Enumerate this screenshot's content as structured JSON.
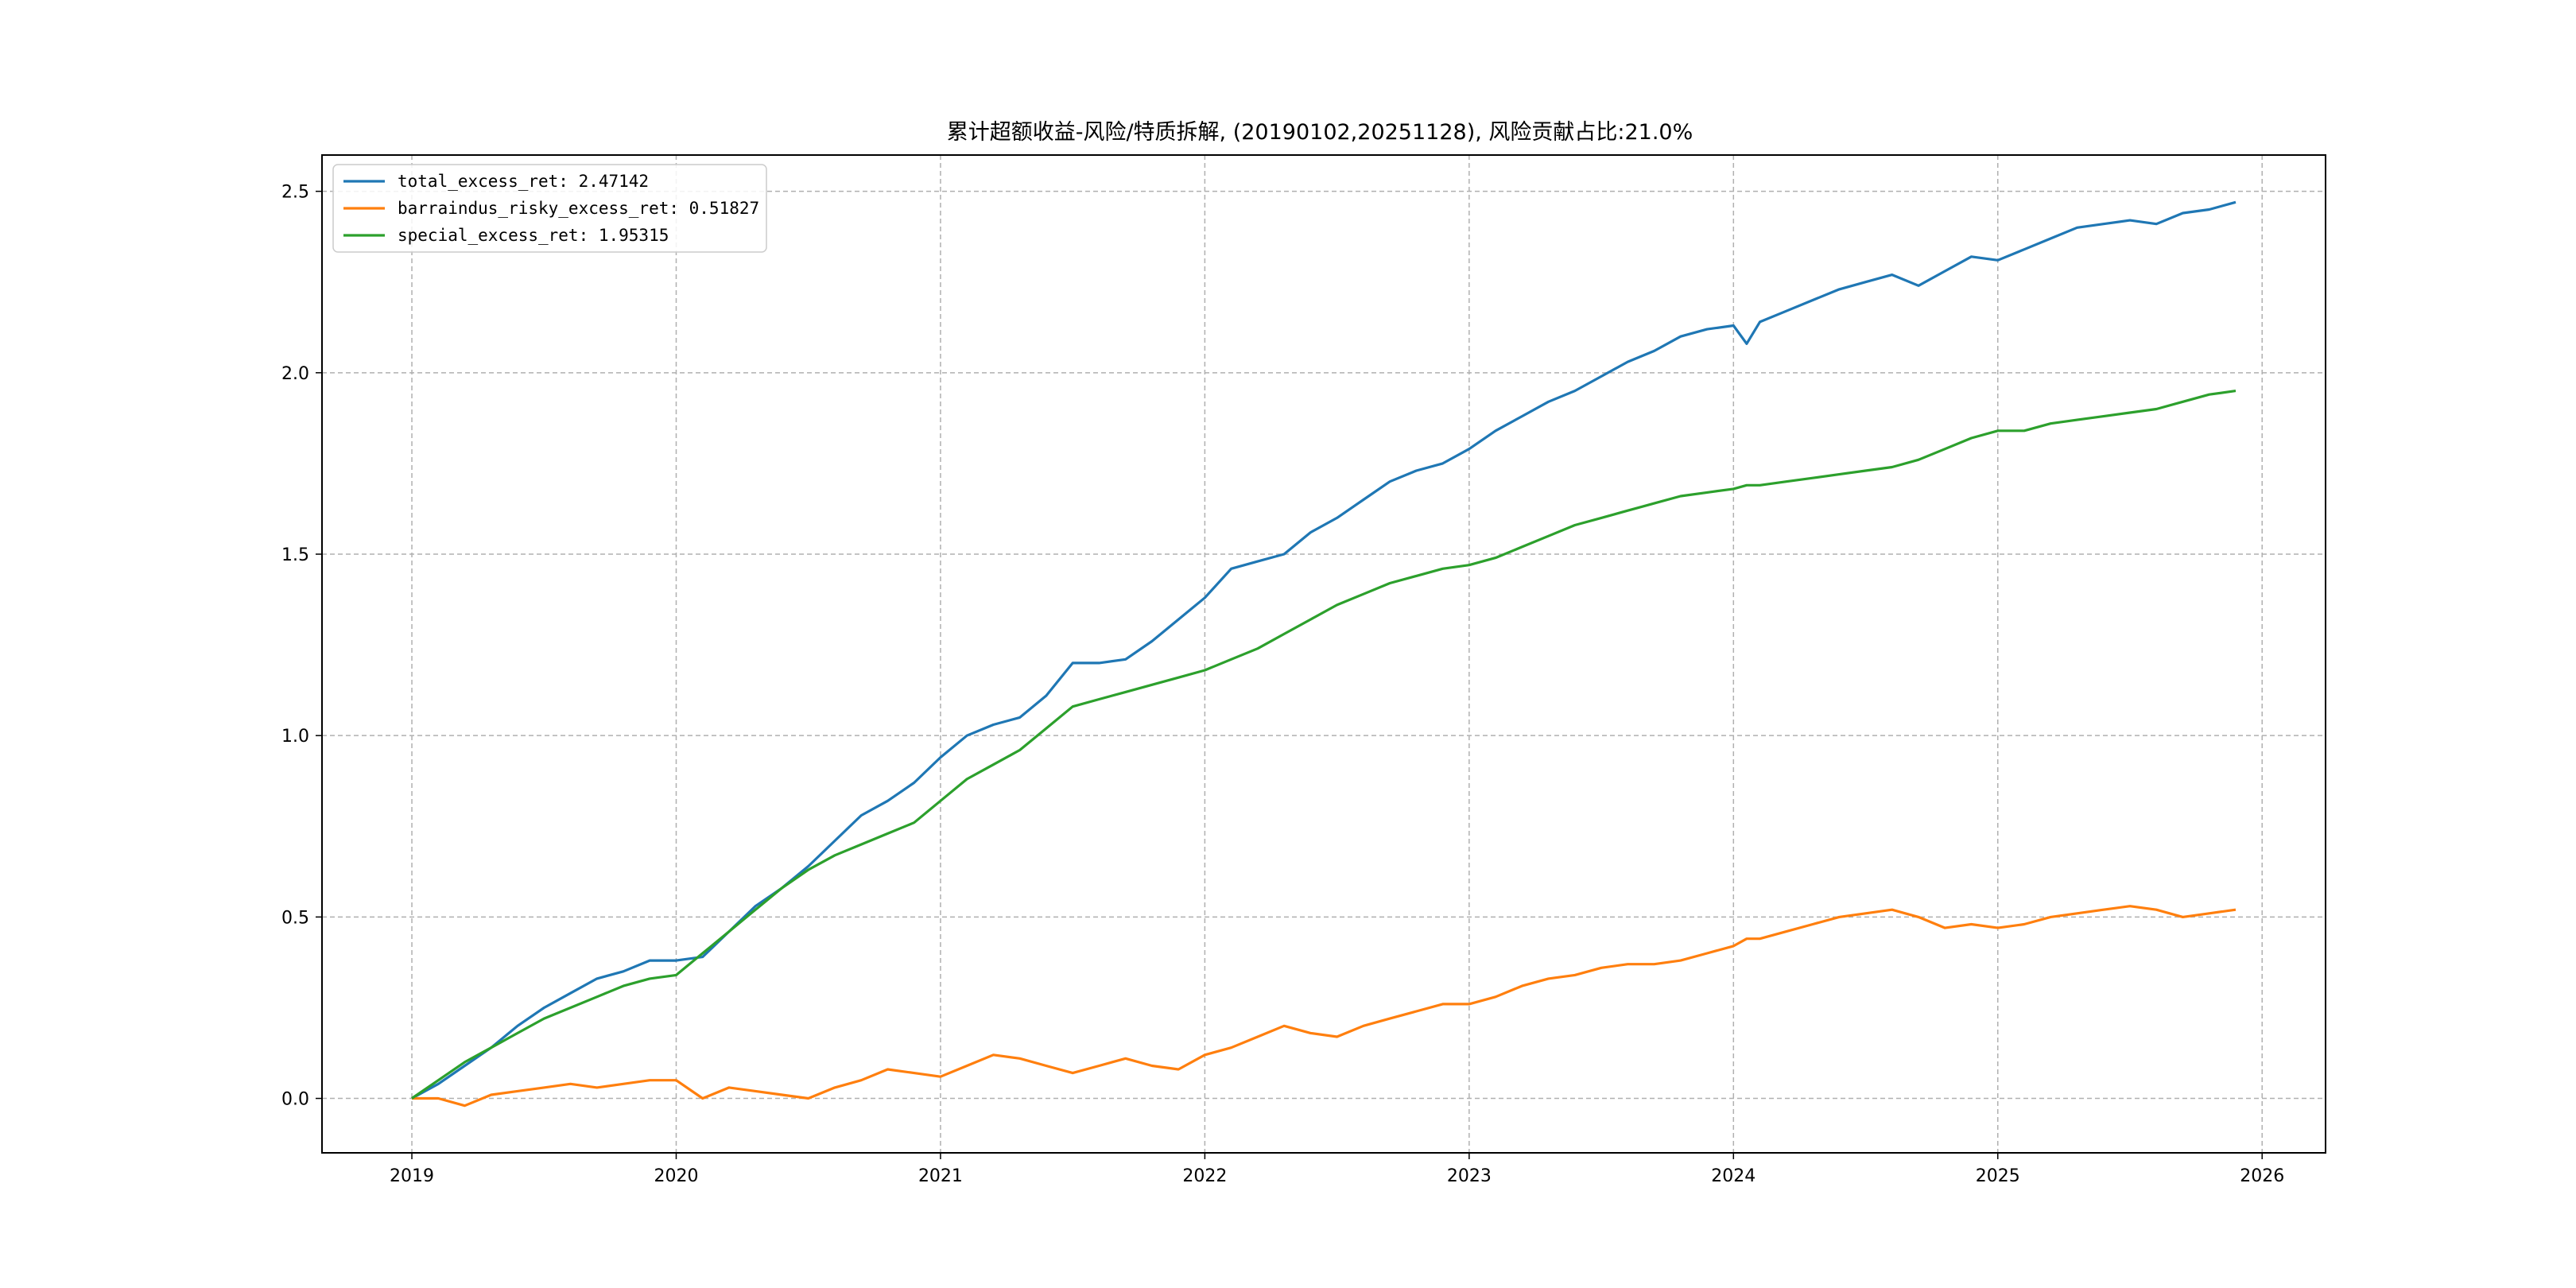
{
  "chart_data": {
    "type": "line",
    "title": "累计超额收益-风险/特质拆解, (20190102,20251128), 风险贡献占比:21.0%",
    "xlabel": "",
    "ylabel": "",
    "x_ticks": [
      "2019",
      "2020",
      "2021",
      "2022",
      "2023",
      "2024",
      "2025",
      "2026"
    ],
    "y_ticks": [
      "0.0",
      "0.5",
      "1.0",
      "1.5",
      "2.0",
      "2.5"
    ],
    "xlim": [
      2018.66,
      2026.24
    ],
    "ylim": [
      -0.15,
      2.6
    ],
    "grid": true,
    "legend_position": "top-left",
    "series": [
      {
        "name": "total_excess_ret",
        "legend_label": "total_excess_ret: 2.47142",
        "color": "#1f77b4",
        "x": [
          2019.0,
          2019.1,
          2019.2,
          2019.3,
          2019.4,
          2019.5,
          2019.6,
          2019.7,
          2019.8,
          2019.9,
          2020.0,
          2020.1,
          2020.2,
          2020.3,
          2020.4,
          2020.5,
          2020.6,
          2020.7,
          2020.8,
          2020.9,
          2021.0,
          2021.1,
          2021.2,
          2021.3,
          2021.4,
          2021.5,
          2021.6,
          2021.7,
          2021.8,
          2021.9,
          2022.0,
          2022.1,
          2022.2,
          2022.3,
          2022.4,
          2022.5,
          2022.6,
          2022.7,
          2022.8,
          2022.9,
          2023.0,
          2023.1,
          2023.2,
          2023.3,
          2023.4,
          2023.5,
          2023.6,
          2023.7,
          2023.8,
          2023.9,
          2024.0,
          2024.05,
          2024.1,
          2024.2,
          2024.3,
          2024.4,
          2024.5,
          2024.6,
          2024.7,
          2024.8,
          2024.9,
          2025.0,
          2025.1,
          2025.2,
          2025.3,
          2025.4,
          2025.5,
          2025.6,
          2025.7,
          2025.8,
          2025.9
        ],
        "y": [
          0.0,
          0.04,
          0.09,
          0.14,
          0.2,
          0.25,
          0.29,
          0.33,
          0.35,
          0.38,
          0.38,
          0.39,
          0.46,
          0.53,
          0.58,
          0.64,
          0.71,
          0.78,
          0.82,
          0.87,
          0.94,
          1.0,
          1.03,
          1.05,
          1.11,
          1.2,
          1.2,
          1.21,
          1.26,
          1.32,
          1.38,
          1.46,
          1.48,
          1.5,
          1.56,
          1.6,
          1.65,
          1.7,
          1.73,
          1.75,
          1.79,
          1.84,
          1.88,
          1.92,
          1.95,
          1.99,
          2.03,
          2.06,
          2.1,
          2.12,
          2.13,
          2.08,
          2.14,
          2.17,
          2.2,
          2.23,
          2.25,
          2.27,
          2.24,
          2.28,
          2.32,
          2.31,
          2.34,
          2.37,
          2.4,
          2.41,
          2.42,
          2.41,
          2.44,
          2.45,
          2.47
        ]
      },
      {
        "name": "barraindus_risky_excess_ret",
        "legend_label": "barraindus_risky_excess_ret: 0.51827",
        "color": "#ff7f0e",
        "x": [
          2019.0,
          2019.1,
          2019.2,
          2019.3,
          2019.4,
          2019.5,
          2019.6,
          2019.7,
          2019.8,
          2019.9,
          2020.0,
          2020.1,
          2020.2,
          2020.3,
          2020.4,
          2020.5,
          2020.6,
          2020.7,
          2020.8,
          2020.9,
          2021.0,
          2021.1,
          2021.2,
          2021.3,
          2021.4,
          2021.5,
          2021.6,
          2021.7,
          2021.8,
          2021.9,
          2022.0,
          2022.1,
          2022.2,
          2022.3,
          2022.4,
          2022.5,
          2022.6,
          2022.7,
          2022.8,
          2022.9,
          2023.0,
          2023.1,
          2023.2,
          2023.3,
          2023.4,
          2023.5,
          2023.6,
          2023.7,
          2023.8,
          2023.9,
          2024.0,
          2024.05,
          2024.1,
          2024.2,
          2024.3,
          2024.4,
          2024.5,
          2024.6,
          2024.7,
          2024.8,
          2024.9,
          2025.0,
          2025.1,
          2025.2,
          2025.3,
          2025.4,
          2025.5,
          2025.6,
          2025.7,
          2025.8,
          2025.9
        ],
        "y": [
          0.0,
          0.0,
          -0.02,
          0.01,
          0.02,
          0.03,
          0.04,
          0.03,
          0.04,
          0.05,
          0.05,
          0.0,
          0.03,
          0.02,
          0.01,
          0.0,
          0.03,
          0.05,
          0.08,
          0.07,
          0.06,
          0.09,
          0.12,
          0.11,
          0.09,
          0.07,
          0.09,
          0.11,
          0.09,
          0.08,
          0.12,
          0.14,
          0.17,
          0.2,
          0.18,
          0.17,
          0.2,
          0.22,
          0.24,
          0.26,
          0.26,
          0.28,
          0.31,
          0.33,
          0.34,
          0.36,
          0.37,
          0.37,
          0.38,
          0.4,
          0.42,
          0.44,
          0.44,
          0.46,
          0.48,
          0.5,
          0.51,
          0.52,
          0.5,
          0.47,
          0.48,
          0.47,
          0.48,
          0.5,
          0.51,
          0.52,
          0.53,
          0.52,
          0.5,
          0.51,
          0.52
        ]
      },
      {
        "name": "special_excess_ret",
        "legend_label": "special_excess_ret: 1.95315",
        "color": "#2ca02c",
        "x": [
          2019.0,
          2019.1,
          2019.2,
          2019.3,
          2019.4,
          2019.5,
          2019.6,
          2019.7,
          2019.8,
          2019.9,
          2020.0,
          2020.1,
          2020.2,
          2020.3,
          2020.4,
          2020.5,
          2020.6,
          2020.7,
          2020.8,
          2020.9,
          2021.0,
          2021.1,
          2021.2,
          2021.3,
          2021.4,
          2021.5,
          2021.6,
          2021.7,
          2021.8,
          2021.9,
          2022.0,
          2022.1,
          2022.2,
          2022.3,
          2022.4,
          2022.5,
          2022.6,
          2022.7,
          2022.8,
          2022.9,
          2023.0,
          2023.1,
          2023.2,
          2023.3,
          2023.4,
          2023.5,
          2023.6,
          2023.7,
          2023.8,
          2023.9,
          2024.0,
          2024.05,
          2024.1,
          2024.2,
          2024.3,
          2024.4,
          2024.5,
          2024.6,
          2024.7,
          2024.8,
          2024.9,
          2025.0,
          2025.1,
          2025.2,
          2025.3,
          2025.4,
          2025.5,
          2025.6,
          2025.7,
          2025.8,
          2025.9
        ],
        "y": [
          0.0,
          0.05,
          0.1,
          0.14,
          0.18,
          0.22,
          0.25,
          0.28,
          0.31,
          0.33,
          0.34,
          0.4,
          0.46,
          0.52,
          0.58,
          0.63,
          0.67,
          0.7,
          0.73,
          0.76,
          0.82,
          0.88,
          0.92,
          0.96,
          1.02,
          1.08,
          1.1,
          1.12,
          1.14,
          1.16,
          1.18,
          1.21,
          1.24,
          1.28,
          1.32,
          1.36,
          1.39,
          1.42,
          1.44,
          1.46,
          1.47,
          1.49,
          1.52,
          1.55,
          1.58,
          1.6,
          1.62,
          1.64,
          1.66,
          1.67,
          1.68,
          1.69,
          1.69,
          1.7,
          1.71,
          1.72,
          1.73,
          1.74,
          1.76,
          1.79,
          1.82,
          1.84,
          1.84,
          1.86,
          1.87,
          1.88,
          1.89,
          1.9,
          1.92,
          1.94,
          1.95
        ]
      }
    ]
  }
}
